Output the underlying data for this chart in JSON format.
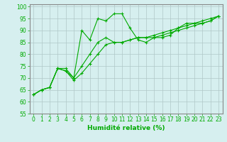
{
  "title": "",
  "xlabel": "Humidité relative (%)",
  "ylabel": "",
  "bg_color": "#d6efef",
  "grid_color": "#b0c8c8",
  "line_color": "#00aa00",
  "border_color": "#888888",
  "xlim": [
    -0.5,
    23.5
  ],
  "ylim": [
    55,
    101
  ],
  "yticks": [
    55,
    60,
    65,
    70,
    75,
    80,
    85,
    90,
    95,
    100
  ],
  "xticks": [
    0,
    1,
    2,
    3,
    4,
    5,
    6,
    7,
    8,
    9,
    10,
    11,
    12,
    13,
    14,
    15,
    16,
    17,
    18,
    19,
    20,
    21,
    22,
    23
  ],
  "series1": {
    "x": [
      0,
      1,
      2,
      3,
      4,
      5,
      6,
      7,
      8,
      9,
      10,
      11,
      12,
      13,
      14,
      15,
      16,
      17,
      18,
      19,
      20,
      21,
      22,
      23
    ],
    "y": [
      63,
      65,
      66,
      74,
      74,
      70,
      90,
      86,
      95,
      94,
      97,
      97,
      91,
      86,
      85,
      87,
      87,
      88,
      91,
      93,
      93,
      94,
      95,
      96
    ]
  },
  "series2": {
    "x": [
      0,
      1,
      2,
      3,
      4,
      5,
      6,
      7,
      8,
      9,
      10,
      11,
      12,
      13,
      14,
      15,
      16,
      17,
      18,
      19,
      20,
      21,
      22,
      23
    ],
    "y": [
      63,
      65,
      66,
      74,
      73,
      70,
      75,
      80,
      85,
      87,
      85,
      85,
      86,
      87,
      87,
      88,
      89,
      90,
      91,
      92,
      93,
      93,
      94,
      96
    ]
  },
  "series3": {
    "x": [
      0,
      1,
      2,
      3,
      4,
      5,
      6,
      7,
      8,
      9,
      10,
      11,
      12,
      13,
      14,
      15,
      16,
      17,
      18,
      19,
      20,
      21,
      22,
      23
    ],
    "y": [
      63,
      65,
      66,
      74,
      73,
      69,
      72,
      76,
      80,
      84,
      85,
      85,
      86,
      87,
      87,
      87,
      88,
      89,
      90,
      91,
      92,
      93,
      94,
      96
    ]
  },
  "figsize": [
    3.2,
    2.0
  ],
  "dpi": 100,
  "tick_fontsize": 5.5,
  "xlabel_fontsize": 6.5
}
